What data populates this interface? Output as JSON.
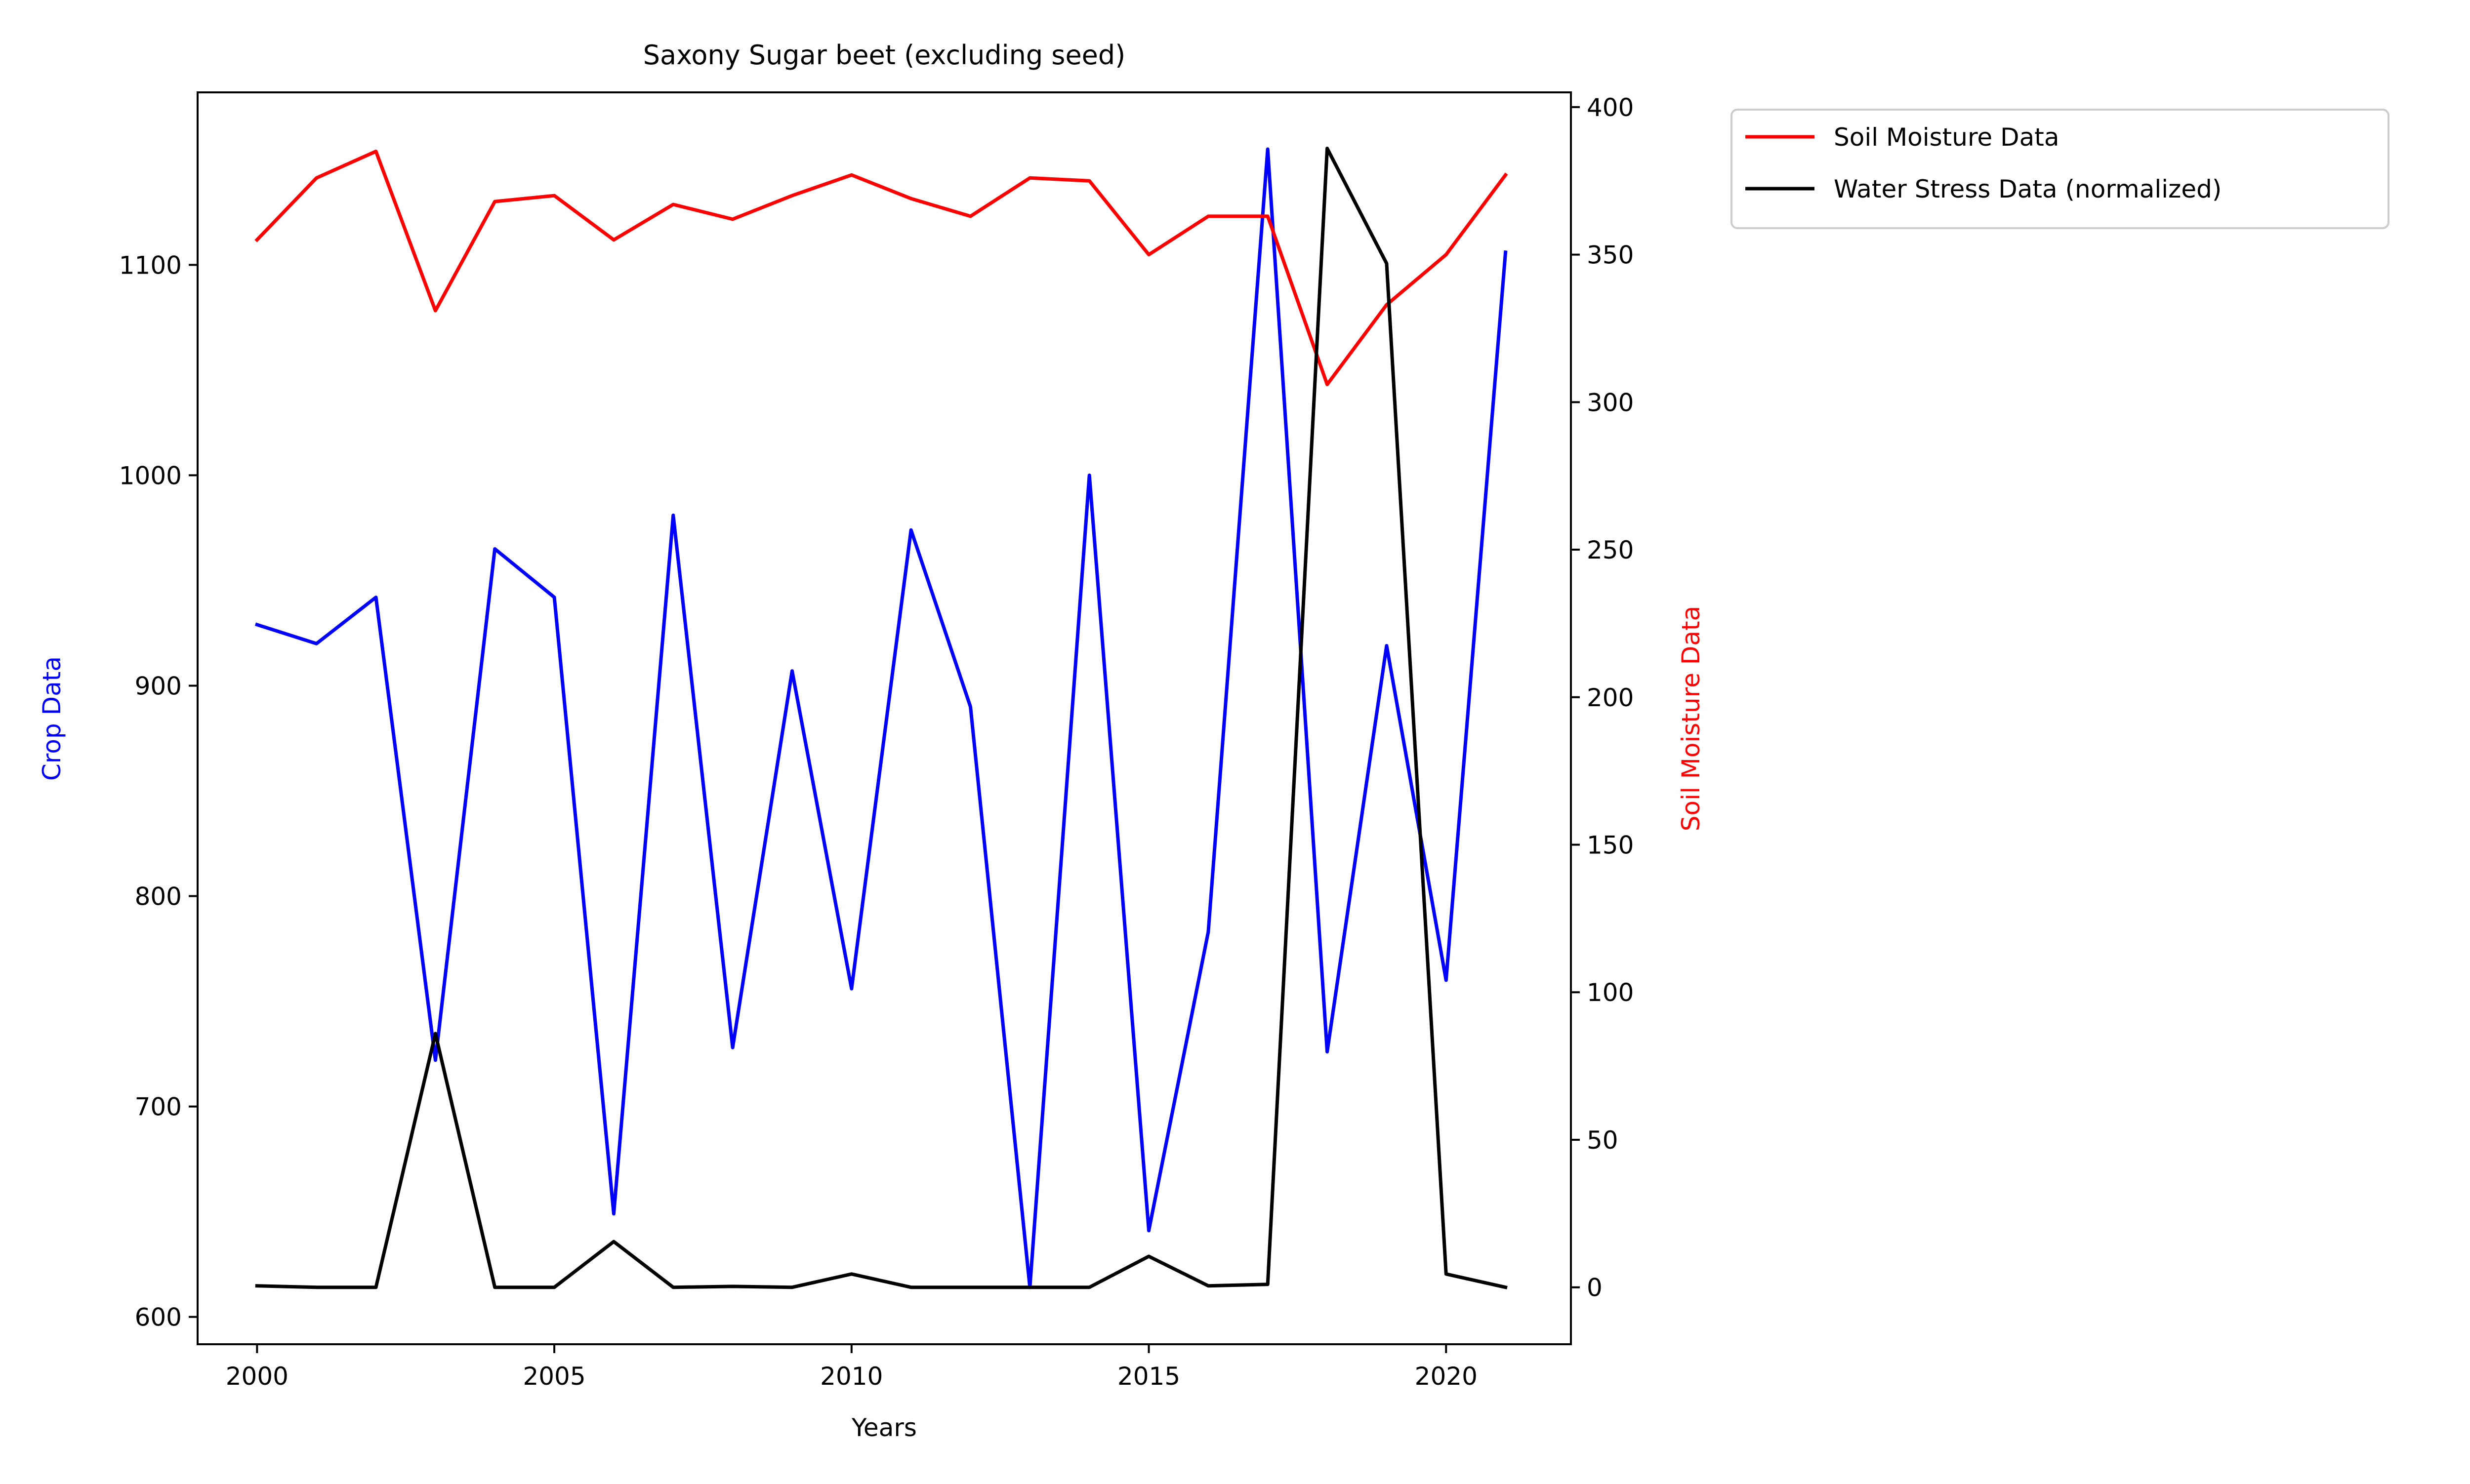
{
  "chart_data": {
    "type": "line",
    "title": "Saxony Sugar beet (excluding seed)",
    "xlabel": "Years",
    "ylabel_left": "Crop Data",
    "ylabel_right": "Soil Moisture Data",
    "x": [
      2000,
      2001,
      2002,
      2003,
      2004,
      2005,
      2006,
      2007,
      2008,
      2009,
      2010,
      2011,
      2012,
      2013,
      2014,
      2015,
      2016,
      2017,
      2018,
      2019,
      2020,
      2021
    ],
    "xlim": [
      1999,
      2022.1
    ],
    "xticks": [
      2000,
      2005,
      2010,
      2015,
      2020
    ],
    "ylim_left": [
      587,
      1182
    ],
    "yticks_left": [
      600,
      700,
      800,
      900,
      1000,
      1100
    ],
    "ylim_right": [
      -19.3,
      405
    ],
    "yticks_right": [
      0,
      50,
      100,
      150,
      200,
      250,
      300,
      350,
      400
    ],
    "grid": false,
    "legend_position": "outside upper right",
    "series": [
      {
        "name": "",
        "axis": "left",
        "color": "#0000ff",
        "values": [
          929,
          920,
          942,
          722,
          965,
          942,
          649,
          981,
          728,
          907,
          756,
          974,
          890,
          614,
          1000,
          641,
          783,
          1155,
          726,
          919,
          760,
          1106
        ]
      },
      {
        "name": "Soil Moisture Data",
        "axis": "right",
        "color": "#ff0000",
        "values": [
          355,
          376,
          385,
          331,
          368,
          370,
          355,
          367,
          362,
          370,
          377,
          369,
          363,
          376,
          375,
          350,
          363,
          363,
          306,
          333,
          350,
          377
        ]
      },
      {
        "name": "Water Stress Data (normalized)",
        "axis": "right",
        "color": "#000000",
        "values": [
          0.5,
          0,
          0,
          86,
          0,
          0,
          15.5,
          0,
          0.3,
          0,
          4.5,
          0,
          0,
          0,
          0,
          10.5,
          0.5,
          1,
          386,
          347,
          4.5,
          0
        ]
      }
    ]
  }
}
